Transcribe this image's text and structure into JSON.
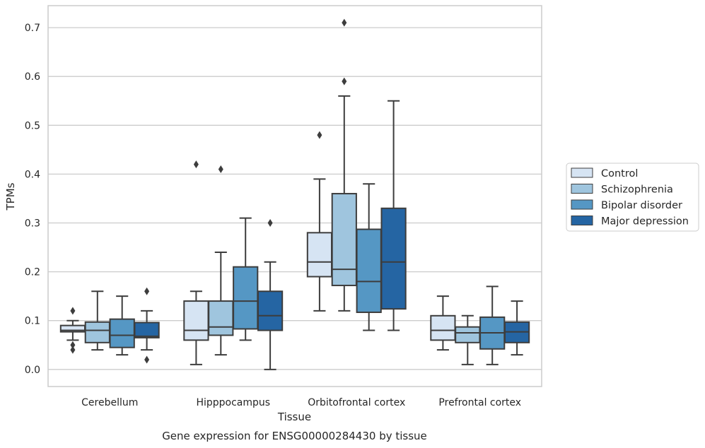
{
  "chart_data": {
    "type": "box",
    "xlabel": "Tissue",
    "ylabel": "TPMs",
    "caption": "Gene expression for ENSG00000284430 by tissue",
    "ylim": [
      -0.035,
      0.745
    ],
    "yticks": [
      "0.0",
      "0.1",
      "0.2",
      "0.3",
      "0.4",
      "0.5",
      "0.6",
      "0.7"
    ],
    "grid": true,
    "legend_position": "right-outside",
    "categories": [
      "Cerebellum",
      "Hipppocampus",
      "Orbitofrontal cortex",
      "Prefrontal cortex"
    ],
    "series": [
      {
        "name": "Control",
        "color": "#d6e4f3",
        "boxes": [
          {
            "whislo": 0.06,
            "q1": 0.077,
            "med": 0.08,
            "q3": 0.09,
            "whishi": 0.1,
            "fliers": [
              0.12,
              0.05,
              0.04
            ]
          },
          {
            "whislo": 0.01,
            "q1": 0.06,
            "med": 0.08,
            "q3": 0.14,
            "whishi": 0.16,
            "fliers": [
              0.42
            ]
          },
          {
            "whislo": 0.12,
            "q1": 0.19,
            "med": 0.22,
            "q3": 0.28,
            "whishi": 0.39,
            "fliers": [
              0.48
            ]
          },
          {
            "whislo": 0.04,
            "q1": 0.06,
            "med": 0.08,
            "q3": 0.11,
            "whishi": 0.15,
            "fliers": []
          }
        ]
      },
      {
        "name": "Schizophrenia",
        "color": "#9fc5de",
        "boxes": [
          {
            "whislo": 0.04,
            "q1": 0.055,
            "med": 0.08,
            "q3": 0.097,
            "whishi": 0.16,
            "fliers": []
          },
          {
            "whislo": 0.03,
            "q1": 0.07,
            "med": 0.087,
            "q3": 0.14,
            "whishi": 0.24,
            "fliers": [
              0.41
            ]
          },
          {
            "whislo": 0.12,
            "q1": 0.172,
            "med": 0.205,
            "q3": 0.36,
            "whishi": 0.56,
            "fliers": [
              0.71,
              0.59
            ]
          },
          {
            "whislo": 0.01,
            "q1": 0.055,
            "med": 0.075,
            "q3": 0.087,
            "whishi": 0.11,
            "fliers": []
          }
        ]
      },
      {
        "name": "Bipolar disorder",
        "color": "#5597c4",
        "boxes": [
          {
            "whislo": 0.03,
            "q1": 0.045,
            "med": 0.07,
            "q3": 0.103,
            "whishi": 0.15,
            "fliers": []
          },
          {
            "whislo": 0.06,
            "q1": 0.083,
            "med": 0.14,
            "q3": 0.21,
            "whishi": 0.31,
            "fliers": []
          },
          {
            "whislo": 0.08,
            "q1": 0.117,
            "med": 0.18,
            "q3": 0.287,
            "whishi": 0.38,
            "fliers": []
          },
          {
            "whislo": 0.01,
            "q1": 0.042,
            "med": 0.075,
            "q3": 0.107,
            "whishi": 0.17,
            "fliers": []
          }
        ]
      },
      {
        "name": "Major depression",
        "color": "#2565a3",
        "boxes": [
          {
            "whislo": 0.04,
            "q1": 0.065,
            "med": 0.068,
            "q3": 0.096,
            "whishi": 0.12,
            "fliers": [
              0.16,
              0.02
            ]
          },
          {
            "whislo": 0.0,
            "q1": 0.08,
            "med": 0.11,
            "q3": 0.16,
            "whishi": 0.22,
            "fliers": [
              0.3
            ]
          },
          {
            "whislo": 0.08,
            "q1": 0.124,
            "med": 0.22,
            "q3": 0.33,
            "whishi": 0.55,
            "fliers": []
          },
          {
            "whislo": 0.03,
            "q1": 0.055,
            "med": 0.077,
            "q3": 0.097,
            "whishi": 0.14,
            "fliers": []
          }
        ]
      }
    ]
  }
}
